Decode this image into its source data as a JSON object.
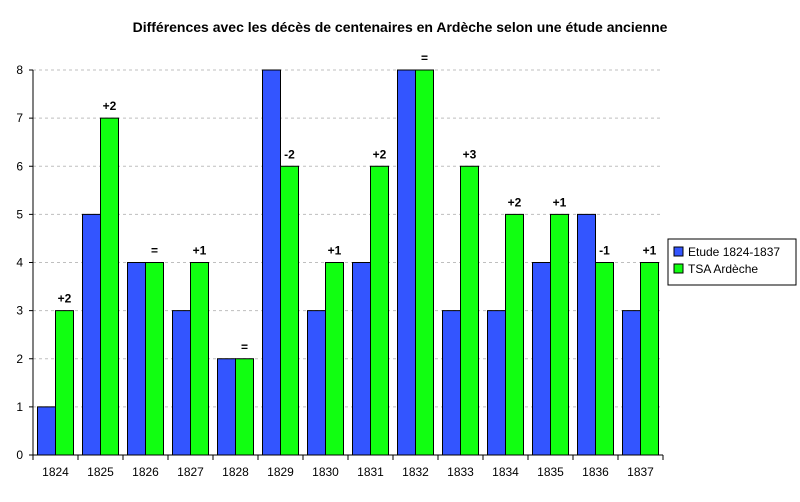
{
  "chart_data": {
    "type": "bar",
    "title": "Différences avec les décès de centenaires en Ardèche selon une étude ancienne",
    "xlabel": "",
    "ylabel": "",
    "categories": [
      "1824",
      "1825",
      "1826",
      "1827",
      "1828",
      "1829",
      "1830",
      "1831",
      "1832",
      "1833",
      "1834",
      "1835",
      "1836",
      "1837"
    ],
    "series": [
      {
        "name": "Etude 1824-1837",
        "color": "#3355FF",
        "values": [
          1,
          5,
          4,
          3,
          2,
          8,
          3,
          4,
          8,
          3,
          3,
          4,
          5,
          3
        ]
      },
      {
        "name": "TSA Ardèche",
        "color": "#11FF11",
        "values": [
          3,
          7,
          4,
          4,
          2,
          6,
          4,
          6,
          8,
          6,
          5,
          5,
          4,
          4
        ]
      }
    ],
    "annotations": [
      "+2",
      "+2",
      "=",
      "+1",
      "=",
      "-2",
      "+1",
      "+2",
      "=",
      "+3",
      "+2",
      "+1",
      "-1",
      "+1"
    ],
    "ylim": [
      0,
      8
    ],
    "yticks": [
      "0",
      "1",
      "2",
      "3",
      "4",
      "5",
      "6",
      "7",
      "8"
    ],
    "grid": true,
    "legend_position": "right"
  }
}
